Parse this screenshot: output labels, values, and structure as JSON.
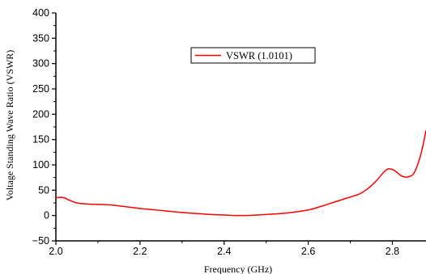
{
  "chart_data": {
    "type": "line",
    "title": "",
    "xlabel": "Frequency (GHz)",
    "ylabel": "Voltage Standing Wave Ratio (VSWR)",
    "xlim": [
      2.0,
      2.88
    ],
    "ylim": [
      -50,
      400
    ],
    "x_ticks": [
      "2.0",
      "2.2",
      "2.4",
      "2.6",
      "2.8"
    ],
    "y_ticks": [
      "−50",
      "0",
      "50",
      "100",
      "150",
      "200",
      "250",
      "300",
      "350",
      "400"
    ],
    "grid": false,
    "legend_position": "upper-center",
    "series": [
      {
        "name": "VSWR (1.0101)",
        "color": "#ff0000",
        "x": [
          2.0,
          2.01,
          2.02,
          2.03,
          2.05,
          2.07,
          2.1,
          2.13,
          2.16,
          2.2,
          2.25,
          2.3,
          2.35,
          2.4,
          2.45,
          2.5,
          2.55,
          2.6,
          2.63,
          2.66,
          2.69,
          2.72,
          2.74,
          2.76,
          2.78,
          2.79,
          2.8,
          2.81,
          2.82,
          2.83,
          2.84,
          2.85,
          2.86,
          2.87,
          2.88
        ],
        "y": [
          35,
          36,
          35,
          31,
          25,
          23,
          22,
          21,
          18,
          14,
          10,
          6,
          3,
          1,
          0,
          2,
          5,
          11,
          18,
          26,
          34,
          42,
          52,
          67,
          86,
          92,
          91,
          86,
          79,
          76,
          77,
          82,
          100,
          128,
          168
        ]
      }
    ]
  }
}
